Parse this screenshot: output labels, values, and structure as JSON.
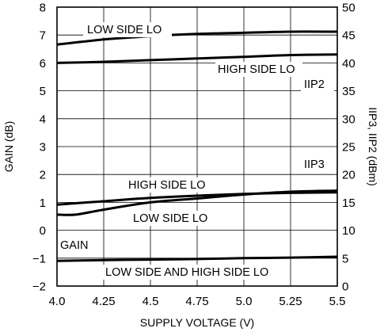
{
  "chart_data": {
    "type": "line",
    "xlabel": "SUPPLY VOLTAGE (V)",
    "ylabel_left": "GAIN (dB)",
    "ylabel_right": "IIP3, IIP2 (dBm)",
    "xlim": [
      4.0,
      5.5
    ],
    "ylim_left": [
      -2,
      8
    ],
    "ylim_right": [
      0,
      50
    ],
    "grid": true,
    "x_ticks": [
      "4.0",
      "4.25",
      "4.5",
      "4.75",
      "5.0",
      "5.25",
      "5.5"
    ],
    "y_left_ticks": [
      "−2",
      "−1",
      "0",
      "1",
      "2",
      "3",
      "4",
      "5",
      "6",
      "7",
      "8"
    ],
    "y_right_ticks": [
      "0",
      "5",
      "10",
      "15",
      "20",
      "25",
      "30",
      "35",
      "40",
      "45",
      "50"
    ],
    "series": [
      {
        "axis": "right",
        "x": [
          4.0,
          4.25,
          4.5,
          4.75,
          5.0,
          5.25,
          5.5
        ],
        "y": [
          43.3,
          44.2,
          44.8,
          45.2,
          45.4,
          45.6,
          45.6
        ]
      },
      {
        "axis": "right",
        "x": [
          4.0,
          4.25,
          4.5,
          4.75,
          5.0,
          5.25,
          5.5
        ],
        "y": [
          40.0,
          40.2,
          40.5,
          40.8,
          41.1,
          41.4,
          41.5
        ]
      },
      {
        "axis": "right",
        "x": [
          4.0,
          4.25,
          4.5,
          4.75,
          5.0,
          5.25,
          5.5
        ],
        "y": [
          14.6,
          15.2,
          15.8,
          16.2,
          16.5,
          16.7,
          16.8
        ]
      },
      {
        "axis": "right",
        "x": [
          4.0,
          4.1,
          4.25,
          4.5,
          4.75,
          5.0,
          5.25,
          5.5
        ],
        "y": [
          12.8,
          12.8,
          13.7,
          15.0,
          15.7,
          16.4,
          16.9,
          17.1
        ]
      },
      {
        "axis": "left",
        "x": [
          4.0,
          4.25,
          4.5,
          4.75,
          5.0,
          5.25,
          5.5
        ],
        "y": [
          -1.1,
          -1.07,
          -1.05,
          -1.03,
          -1.0,
          -0.98,
          -0.95
        ]
      }
    ],
    "annotations": {
      "low_side_lo_top": "LOW SIDE LO",
      "high_side_lo_top": "HIGH SIDE LO",
      "iip2": "IIP2",
      "iip3": "IIP3",
      "high_side_lo_mid": "HIGH SIDE LO",
      "low_side_lo_mid": "LOW SIDE LO",
      "gain": "GAIN",
      "low_and_high": "LOW SIDE AND HIGH SIDE LO"
    }
  }
}
